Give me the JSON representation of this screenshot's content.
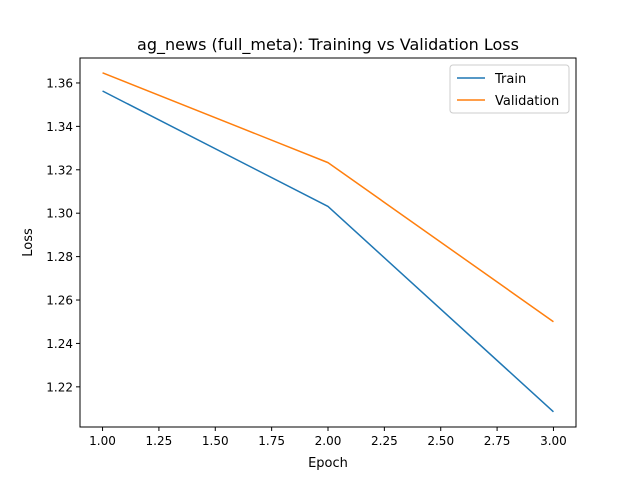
{
  "chart_data": {
    "type": "line",
    "title": "ag_news (full_meta): Training vs Validation Loss",
    "xlabel": "Epoch",
    "ylabel": "Loss",
    "x": [
      1.0,
      2.0,
      3.0
    ],
    "xlim": [
      0.9,
      3.1
    ],
    "ylim": [
      1.2015,
      1.3715
    ],
    "xticks": [
      1.0,
      1.25,
      1.5,
      1.75,
      2.0,
      2.25,
      2.5,
      2.75,
      3.0
    ],
    "xtick_labels": [
      "1.00",
      "1.25",
      "1.50",
      "1.75",
      "2.00",
      "2.25",
      "2.50",
      "2.75",
      "3.00"
    ],
    "yticks": [
      1.22,
      1.24,
      1.26,
      1.28,
      1.3,
      1.32,
      1.34,
      1.36
    ],
    "ytick_labels": [
      "1.22",
      "1.24",
      "1.26",
      "1.28",
      "1.30",
      "1.32",
      "1.34",
      "1.36"
    ],
    "grid": false,
    "legend_position": "top-right",
    "series": [
      {
        "name": "Train",
        "color": "#1f77b4",
        "values": [
          1.3563,
          1.3031,
          1.2085
        ]
      },
      {
        "name": "Validation",
        "color": "#ff7f0e",
        "values": [
          1.3647,
          1.3233,
          1.25
        ]
      }
    ]
  }
}
